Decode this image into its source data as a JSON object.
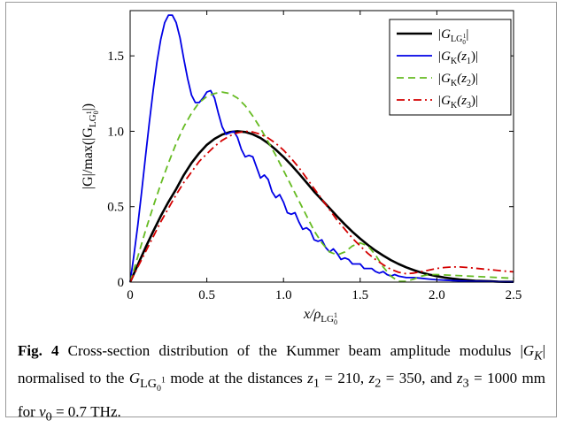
{
  "chart_data": {
    "type": "line",
    "xlabel": "x/ρ",
    "xlabel_sub": "LG",
    "xlabel_sub_sub": "0",
    "xlabel_sub_sup": "1",
    "ylabel": "|G|/max(|G",
    "ylabel_sub": "LG",
    "ylabel_sub_sub": "0",
    "ylabel_sub_sup": "1",
    "ylabel_end": "|)",
    "xlim": [
      0,
      2.5
    ],
    "ylim": [
      0,
      1.8
    ],
    "xticks": [
      "0",
      "0.5",
      "1.0",
      "1.5",
      "2.0",
      "2.5"
    ],
    "xtick_values": [
      0,
      0.5,
      1.0,
      1.5,
      2.0,
      2.5
    ],
    "yticks": [
      "0",
      "0.5",
      "1.0",
      "1.5"
    ],
    "ytick_values": [
      0,
      0.5,
      1.0,
      1.5
    ],
    "grid": false,
    "legend_position": "top-right",
    "series": [
      {
        "name": "|G_{LG_0^1}|",
        "legend_main": "|G",
        "legend_sub": "LG",
        "legend_sub_sub": "0",
        "legend_sub_sup": "1",
        "legend_end": "|",
        "color": "#000000",
        "style": "solid",
        "x": [
          0,
          0.05,
          0.1,
          0.15,
          0.2,
          0.25,
          0.3,
          0.35,
          0.4,
          0.45,
          0.5,
          0.55,
          0.6,
          0.65,
          0.7,
          0.75,
          0.8,
          0.85,
          0.9,
          0.95,
          1.0,
          1.05,
          1.1,
          1.15,
          1.2,
          1.25,
          1.3,
          1.35,
          1.4,
          1.45,
          1.5,
          1.55,
          1.6,
          1.65,
          1.7,
          1.75,
          1.8,
          1.85,
          1.9,
          1.95,
          2.0,
          2.05,
          2.1,
          2.15,
          2.2,
          2.25,
          2.3,
          2.35,
          2.4,
          2.45,
          2.5
        ],
        "y": [
          0,
          0.115,
          0.228,
          0.336,
          0.438,
          0.532,
          0.617,
          0.71,
          0.79,
          0.855,
          0.91,
          0.95,
          0.978,
          0.995,
          1.0,
          0.995,
          0.98,
          0.955,
          0.92,
          0.878,
          0.83,
          0.777,
          0.72,
          0.66,
          0.6,
          0.545,
          0.49,
          0.435,
          0.382,
          0.333,
          0.288,
          0.246,
          0.209,
          0.176,
          0.146,
          0.12,
          0.098,
          0.079,
          0.063,
          0.05,
          0.039,
          0.03,
          0.023,
          0.017,
          0.013,
          0.009,
          0.007,
          0.005,
          0.003,
          0.002,
          0.002
        ]
      },
      {
        "name": "|G_K(z_1)|",
        "legend_main": "|G",
        "legend_sub": "K",
        "legend_arg": "(z",
        "legend_arg_sub": "1",
        "legend_end": ")|",
        "color": "#0000e6",
        "style": "solid",
        "x": [
          0,
          0.025,
          0.05,
          0.075,
          0.1,
          0.125,
          0.15,
          0.175,
          0.2,
          0.225,
          0.25,
          0.275,
          0.3,
          0.325,
          0.35,
          0.375,
          0.4,
          0.425,
          0.45,
          0.475,
          0.5,
          0.525,
          0.55,
          0.575,
          0.6,
          0.625,
          0.65,
          0.675,
          0.7,
          0.725,
          0.75,
          0.775,
          0.8,
          0.825,
          0.85,
          0.875,
          0.9,
          0.925,
          0.95,
          0.975,
          1.0,
          1.025,
          1.05,
          1.075,
          1.1,
          1.125,
          1.15,
          1.175,
          1.2,
          1.225,
          1.25,
          1.275,
          1.3,
          1.325,
          1.35,
          1.375,
          1.4,
          1.425,
          1.45,
          1.475,
          1.5,
          1.525,
          1.55,
          1.575,
          1.6,
          1.625,
          1.65,
          1.675,
          1.7,
          1.725,
          1.75,
          1.8,
          1.85,
          1.9,
          1.95,
          2.0,
          2.1,
          2.2,
          2.3,
          2.4,
          2.5
        ],
        "y": [
          0,
          0.18,
          0.38,
          0.6,
          0.83,
          1.06,
          1.27,
          1.46,
          1.61,
          1.72,
          1.77,
          1.77,
          1.72,
          1.62,
          1.48,
          1.35,
          1.24,
          1.19,
          1.19,
          1.22,
          1.26,
          1.27,
          1.22,
          1.12,
          1.03,
          0.98,
          0.99,
          1.0,
          0.96,
          0.88,
          0.83,
          0.84,
          0.83,
          0.76,
          0.69,
          0.71,
          0.68,
          0.6,
          0.56,
          0.58,
          0.53,
          0.46,
          0.45,
          0.46,
          0.4,
          0.35,
          0.36,
          0.34,
          0.28,
          0.27,
          0.28,
          0.23,
          0.2,
          0.22,
          0.19,
          0.15,
          0.16,
          0.15,
          0.12,
          0.12,
          0.12,
          0.09,
          0.09,
          0.09,
          0.07,
          0.06,
          0.07,
          0.05,
          0.04,
          0.05,
          0.04,
          0.03,
          0.03,
          0.025,
          0.02,
          0.015,
          0.01,
          0.006,
          0.004,
          0.002,
          0.001
        ]
      },
      {
        "name": "|G_K(z_2)|",
        "legend_main": "|G",
        "legend_sub": "K",
        "legend_arg": "(z",
        "legend_arg_sub": "2",
        "legend_end": ")|",
        "color": "#66bb22",
        "style": "dashed",
        "x": [
          0,
          0.05,
          0.1,
          0.15,
          0.2,
          0.25,
          0.3,
          0.35,
          0.4,
          0.45,
          0.5,
          0.55,
          0.6,
          0.65,
          0.7,
          0.75,
          0.8,
          0.85,
          0.9,
          0.95,
          1.0,
          1.05,
          1.1,
          1.15,
          1.2,
          1.25,
          1.3,
          1.35,
          1.4,
          1.45,
          1.5,
          1.55,
          1.6,
          1.65,
          1.7,
          1.75,
          1.8,
          1.85,
          1.9,
          1.95,
          2.0,
          2.1,
          2.2,
          2.3,
          2.4,
          2.5
        ],
        "y": [
          0,
          0.17,
          0.34,
          0.5,
          0.65,
          0.79,
          0.92,
          1.03,
          1.12,
          1.19,
          1.23,
          1.25,
          1.26,
          1.25,
          1.22,
          1.17,
          1.1,
          1.02,
          0.93,
          0.84,
          0.74,
          0.64,
          0.54,
          0.44,
          0.34,
          0.26,
          0.2,
          0.18,
          0.2,
          0.24,
          0.26,
          0.24,
          0.18,
          0.1,
          0.04,
          0.005,
          0.005,
          0.02,
          0.04,
          0.05,
          0.05,
          0.045,
          0.04,
          0.035,
          0.03,
          0.025
        ]
      },
      {
        "name": "|G_K(z_3)|",
        "legend_main": "|G",
        "legend_sub": "K",
        "legend_arg": "(z",
        "legend_arg_sub": "3",
        "legend_end": ")|",
        "color": "#d40000",
        "style": "dashdot",
        "x": [
          0,
          0.05,
          0.1,
          0.15,
          0.2,
          0.25,
          0.3,
          0.35,
          0.4,
          0.45,
          0.5,
          0.55,
          0.6,
          0.65,
          0.7,
          0.75,
          0.8,
          0.85,
          0.9,
          0.95,
          1.0,
          1.05,
          1.1,
          1.15,
          1.2,
          1.25,
          1.3,
          1.35,
          1.4,
          1.45,
          1.5,
          1.55,
          1.6,
          1.65,
          1.7,
          1.75,
          1.8,
          1.85,
          1.9,
          1.95,
          2.0,
          2.05,
          2.1,
          2.15,
          2.2,
          2.25,
          2.3,
          2.35,
          2.4,
          2.45,
          2.5
        ],
        "y": [
          0,
          0.1,
          0.2,
          0.3,
          0.4,
          0.49,
          0.58,
          0.66,
          0.73,
          0.8,
          0.85,
          0.9,
          0.94,
          0.97,
          0.99,
          1.0,
          0.995,
          0.98,
          0.955,
          0.92,
          0.875,
          0.82,
          0.76,
          0.69,
          0.62,
          0.55,
          0.48,
          0.41,
          0.35,
          0.29,
          0.24,
          0.19,
          0.15,
          0.115,
          0.085,
          0.065,
          0.055,
          0.06,
          0.07,
          0.08,
          0.09,
          0.097,
          0.1,
          0.1,
          0.097,
          0.092,
          0.087,
          0.082,
          0.077,
          0.072,
          0.068
        ]
      }
    ]
  },
  "caption": {
    "fig_label": "Fig. 4",
    "t1": " Cross-section distribution of the Kummer beam amplitude modulus |",
    "gk": "G",
    "gk_sub": "K",
    "t2": "| normalised to the ",
    "g": "G",
    "g_sub": "LG",
    "g_sub_sub": "0",
    "g_sub_sup": "1",
    "t3": " mode at the distances ",
    "z1": "z",
    "z1_sub": "1",
    "t4": " = 210, ",
    "z2": "z",
    "z2_sub": "2",
    "t5": " = 350, and ",
    "z3": "z",
    "z3_sub": "3",
    "t6": " = 1000 mm for ",
    "nu": "ν",
    "nu_sub": "0",
    "t7": " = 0.7 THz."
  }
}
